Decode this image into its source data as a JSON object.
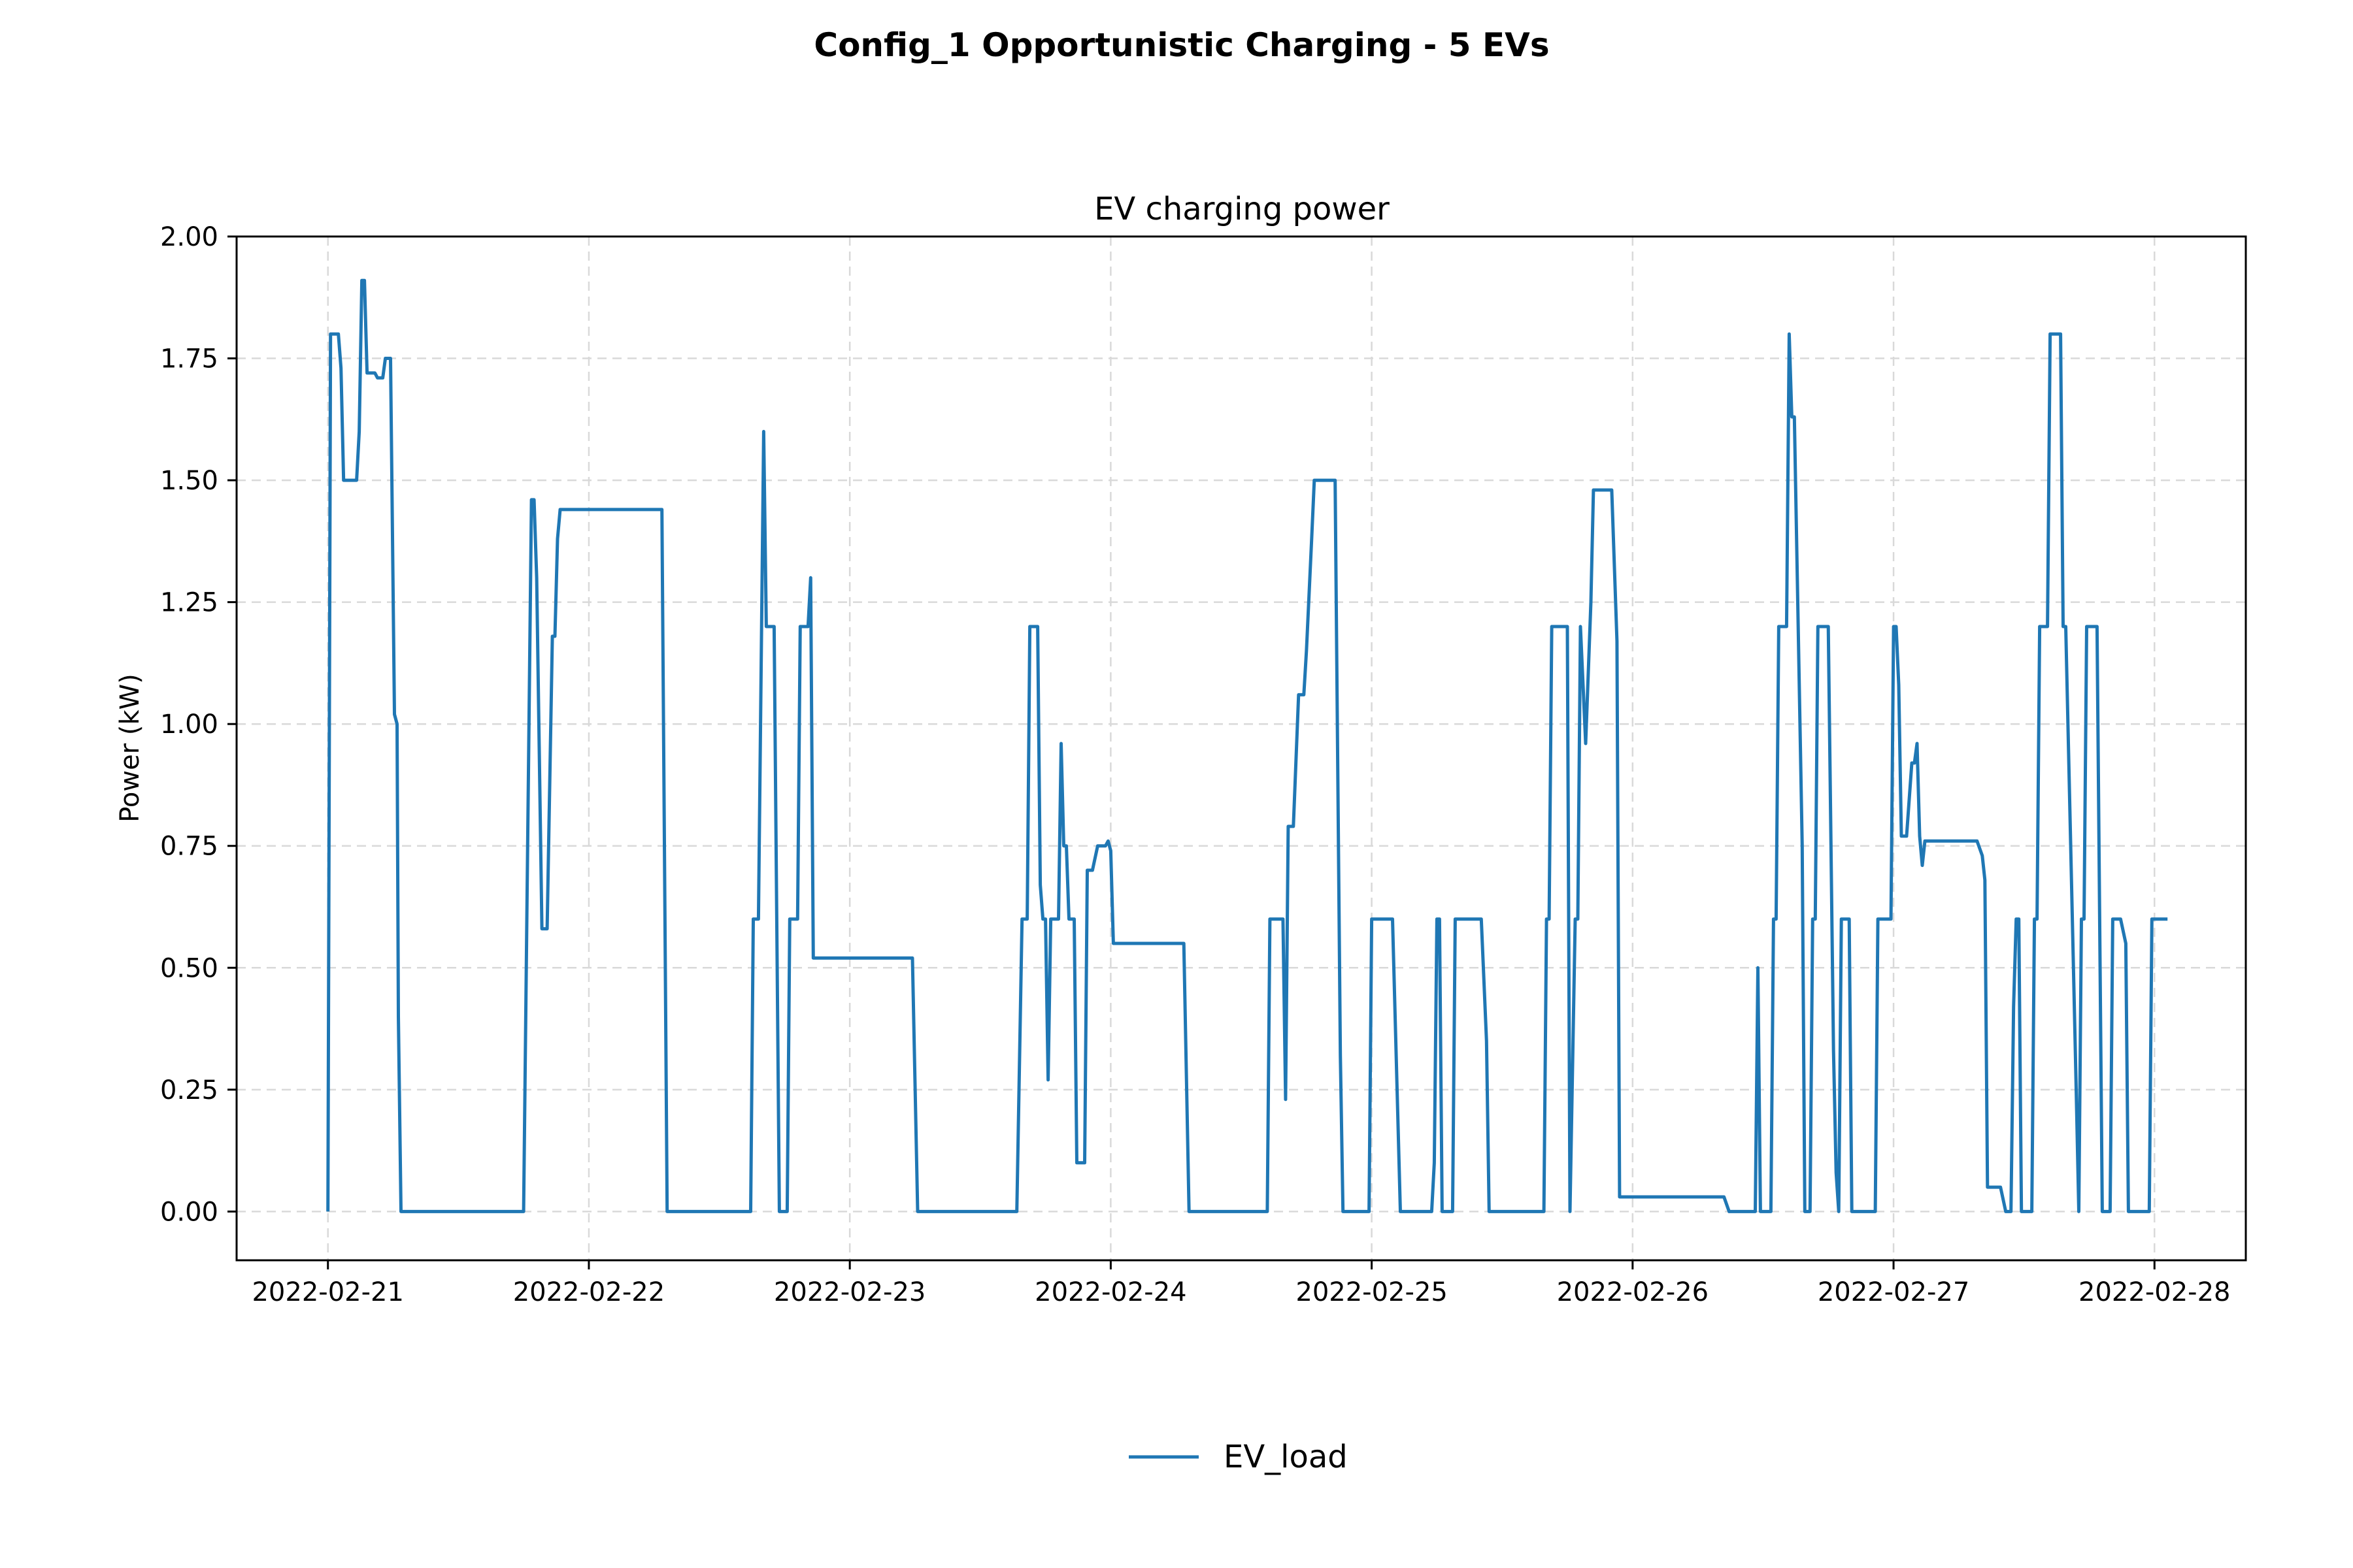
{
  "figure": {
    "suptitle": "Config_1 Opportunistic Charging - 5 EVs"
  },
  "colors": {
    "series": "#1f77b4",
    "grid": "#d9d9d9",
    "axis": "#000000"
  },
  "chart_data": {
    "type": "line",
    "title": "EV charging power",
    "xlabel": "",
    "ylabel": "Power (kW)",
    "x_unit": "days from 2022-02-21 00:00",
    "xlim": [
      -0.35,
      7.35
    ],
    "ylim": [
      -0.1,
      2.0
    ],
    "grid": true,
    "legend": "bottom-center",
    "x_ticks": [
      {
        "value": 0,
        "label": "2022-02-21"
      },
      {
        "value": 1,
        "label": "2022-02-22"
      },
      {
        "value": 2,
        "label": "2022-02-23"
      },
      {
        "value": 3,
        "label": "2022-02-24"
      },
      {
        "value": 4,
        "label": "2022-02-25"
      },
      {
        "value": 5,
        "label": "2022-02-26"
      },
      {
        "value": 6,
        "label": "2022-02-27"
      },
      {
        "value": 7,
        "label": "2022-02-28"
      }
    ],
    "y_ticks": [
      {
        "value": 0.0,
        "label": "0.00"
      },
      {
        "value": 0.25,
        "label": "0.25"
      },
      {
        "value": 0.5,
        "label": "0.50"
      },
      {
        "value": 0.75,
        "label": "0.75"
      },
      {
        "value": 1.0,
        "label": "1.00"
      },
      {
        "value": 1.25,
        "label": "1.25"
      },
      {
        "value": 1.5,
        "label": "1.50"
      },
      {
        "value": 1.75,
        "label": "1.75"
      },
      {
        "value": 2.0,
        "label": "2.00"
      }
    ],
    "series": [
      {
        "name": "EV_load",
        "color": "#1f77b4",
        "points": [
          [
            0.0,
            0.0
          ],
          [
            0.01,
            1.8
          ],
          [
            0.04,
            1.8
          ],
          [
            0.05,
            1.73
          ],
          [
            0.06,
            1.5
          ],
          [
            0.11,
            1.5
          ],
          [
            0.12,
            1.6
          ],
          [
            0.13,
            1.91
          ],
          [
            0.14,
            1.91
          ],
          [
            0.15,
            1.72
          ],
          [
            0.18,
            1.72
          ],
          [
            0.19,
            1.71
          ],
          [
            0.21,
            1.71
          ],
          [
            0.22,
            1.75
          ],
          [
            0.24,
            1.75
          ],
          [
            0.255,
            1.02
          ],
          [
            0.265,
            1.0
          ],
          [
            0.27,
            0.4
          ],
          [
            0.28,
            0.0
          ],
          [
            0.75,
            0.0
          ],
          [
            0.78,
            1.46
          ],
          [
            0.79,
            1.46
          ],
          [
            0.8,
            1.3
          ],
          [
            0.82,
            0.58
          ],
          [
            0.84,
            0.58
          ],
          [
            0.86,
            1.18
          ],
          [
            0.87,
            1.18
          ],
          [
            0.88,
            1.38
          ],
          [
            0.89,
            1.44
          ],
          [
            1.28,
            1.44
          ],
          [
            1.3,
            0.0
          ],
          [
            1.62,
            0.0
          ],
          [
            1.63,
            0.6
          ],
          [
            1.65,
            0.6
          ],
          [
            1.67,
            1.6
          ],
          [
            1.68,
            1.2
          ],
          [
            1.71,
            1.2
          ],
          [
            1.73,
            0.0
          ],
          [
            1.76,
            0.0
          ],
          [
            1.77,
            0.6
          ],
          [
            1.8,
            0.6
          ],
          [
            1.81,
            1.2
          ],
          [
            1.84,
            1.2
          ],
          [
            1.85,
            1.3
          ],
          [
            1.86,
            0.52
          ],
          [
            2.24,
            0.52
          ],
          [
            2.26,
            0.0
          ],
          [
            2.64,
            0.0
          ],
          [
            2.66,
            0.6
          ],
          [
            2.68,
            0.6
          ],
          [
            2.69,
            1.2
          ],
          [
            2.72,
            1.2
          ],
          [
            2.73,
            0.67
          ],
          [
            2.74,
            0.6
          ],
          [
            2.75,
            0.6
          ],
          [
            2.76,
            0.27
          ],
          [
            2.77,
            0.6
          ],
          [
            2.8,
            0.6
          ],
          [
            2.81,
            0.96
          ],
          [
            2.82,
            0.75
          ],
          [
            2.83,
            0.75
          ],
          [
            2.84,
            0.6
          ],
          [
            2.86,
            0.6
          ],
          [
            2.87,
            0.1
          ],
          [
            2.9,
            0.1
          ],
          [
            2.91,
            0.7
          ],
          [
            2.93,
            0.7
          ],
          [
            2.95,
            0.75
          ],
          [
            2.98,
            0.75
          ],
          [
            2.99,
            0.76
          ],
          [
            3.0,
            0.74
          ],
          [
            3.01,
            0.55
          ],
          [
            3.28,
            0.55
          ],
          [
            3.3,
            0.0
          ],
          [
            3.6,
            0.0
          ],
          [
            3.61,
            0.6
          ],
          [
            3.66,
            0.6
          ],
          [
            3.67,
            0.23
          ],
          [
            3.68,
            0.79
          ],
          [
            3.7,
            0.79
          ],
          [
            3.72,
            1.06
          ],
          [
            3.74,
            1.06
          ],
          [
            3.75,
            1.15
          ],
          [
            3.77,
            1.38
          ],
          [
            3.78,
            1.5
          ],
          [
            3.86,
            1.5
          ],
          [
            3.88,
            0.32
          ],
          [
            3.89,
            0.0
          ],
          [
            3.99,
            0.0
          ],
          [
            4.0,
            0.6
          ],
          [
            4.08,
            0.6
          ],
          [
            4.1,
            0.2
          ],
          [
            4.11,
            0.0
          ],
          [
            4.23,
            0.0
          ],
          [
            4.24,
            0.1
          ],
          [
            4.25,
            0.6
          ],
          [
            4.26,
            0.6
          ],
          [
            4.27,
            0.0
          ],
          [
            4.31,
            0.0
          ],
          [
            4.32,
            0.6
          ],
          [
            4.42,
            0.6
          ],
          [
            4.44,
            0.35
          ],
          [
            4.45,
            0.0
          ],
          [
            4.66,
            0.0
          ],
          [
            4.67,
            0.6
          ],
          [
            4.68,
            0.6
          ],
          [
            4.69,
            1.2
          ],
          [
            4.75,
            1.2
          ],
          [
            4.76,
            0.0
          ],
          [
            4.78,
            0.6
          ],
          [
            4.79,
            0.6
          ],
          [
            4.8,
            1.2
          ],
          [
            4.82,
            0.96
          ],
          [
            4.84,
            1.25
          ],
          [
            4.85,
            1.48
          ],
          [
            4.92,
            1.48
          ],
          [
            4.94,
            1.17
          ],
          [
            4.95,
            0.03
          ],
          [
            5.35,
            0.03
          ],
          [
            5.37,
            0.0
          ],
          [
            5.47,
            0.0
          ],
          [
            5.48,
            0.5
          ],
          [
            5.49,
            0.0
          ],
          [
            5.53,
            0.0
          ],
          [
            5.54,
            0.6
          ],
          [
            5.55,
            0.6
          ],
          [
            5.56,
            1.2
          ],
          [
            5.59,
            1.2
          ],
          [
            5.6,
            1.8
          ],
          [
            5.61,
            1.63
          ],
          [
            5.62,
            1.63
          ],
          [
            5.65,
            0.75
          ],
          [
            5.66,
            0.0
          ],
          [
            5.68,
            0.0
          ],
          [
            5.69,
            0.6
          ],
          [
            5.7,
            0.6
          ],
          [
            5.71,
            1.2
          ],
          [
            5.75,
            1.2
          ],
          [
            5.77,
            0.33
          ],
          [
            5.78,
            0.08
          ],
          [
            5.79,
            0.0
          ],
          [
            5.8,
            0.6
          ],
          [
            5.83,
            0.6
          ],
          [
            5.84,
            0.0
          ],
          [
            5.93,
            0.0
          ],
          [
            5.94,
            0.6
          ],
          [
            5.99,
            0.6
          ],
          [
            6.0,
            1.2
          ],
          [
            6.01,
            1.2
          ],
          [
            6.02,
            1.08
          ],
          [
            6.03,
            0.77
          ],
          [
            6.05,
            0.77
          ],
          [
            6.07,
            0.92
          ],
          [
            6.08,
            0.92
          ],
          [
            6.09,
            0.96
          ],
          [
            6.1,
            0.77
          ],
          [
            6.11,
            0.71
          ],
          [
            6.12,
            0.76
          ],
          [
            6.32,
            0.76
          ],
          [
            6.34,
            0.73
          ],
          [
            6.35,
            0.68
          ],
          [
            6.36,
            0.05
          ],
          [
            6.41,
            0.05
          ],
          [
            6.43,
            0.0
          ],
          [
            6.45,
            0.0
          ],
          [
            6.46,
            0.42
          ],
          [
            6.47,
            0.6
          ],
          [
            6.48,
            0.6
          ],
          [
            6.49,
            0.0
          ],
          [
            6.53,
            0.0
          ],
          [
            6.54,
            0.6
          ],
          [
            6.55,
            0.6
          ],
          [
            6.56,
            1.2
          ],
          [
            6.59,
            1.2
          ],
          [
            6.6,
            1.8
          ],
          [
            6.64,
            1.8
          ],
          [
            6.65,
            1.2
          ],
          [
            6.66,
            1.2
          ],
          [
            6.7,
            0.25
          ],
          [
            6.71,
            0.0
          ],
          [
            6.72,
            0.6
          ],
          [
            6.73,
            0.6
          ],
          [
            6.74,
            1.2
          ],
          [
            6.78,
            1.2
          ],
          [
            6.79,
            0.6
          ],
          [
            6.8,
            0.0
          ],
          [
            6.83,
            0.0
          ],
          [
            6.84,
            0.6
          ],
          [
            6.87,
            0.6
          ],
          [
            6.89,
            0.55
          ],
          [
            6.9,
            0.0
          ],
          [
            6.98,
            0.0
          ],
          [
            6.99,
            0.6
          ],
          [
            7.05,
            0.6
          ]
        ]
      }
    ]
  }
}
